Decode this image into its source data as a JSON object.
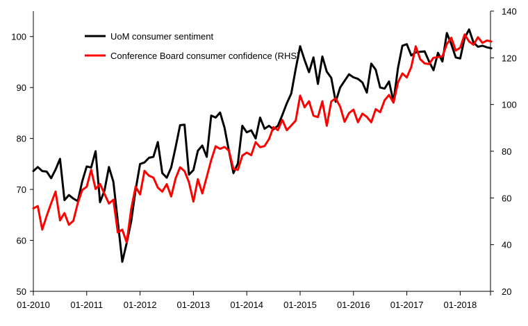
{
  "chart_data": {
    "type": "line",
    "title": "",
    "xlabel": "",
    "ylabel_left": "",
    "ylabel_right": "",
    "x_tick_labels": [
      "01-2010",
      "01-2011",
      "01-2012",
      "01-2013",
      "01-2014",
      "01-2015",
      "01-2016",
      "01-2017",
      "01-2018"
    ],
    "x_range_months": [
      0,
      103
    ],
    "y_left": {
      "range": [
        50,
        105
      ],
      "ticks": [
        50,
        60,
        70,
        80,
        90,
        100
      ]
    },
    "y_right": {
      "range": [
        20,
        140
      ],
      "ticks": [
        20,
        40,
        60,
        80,
        100,
        120,
        140
      ]
    },
    "series": [
      {
        "name": "UoM consumer sentiment",
        "axis": "left",
        "color": "#000000",
        "values": [
          73.6,
          74.4,
          73.6,
          73.5,
          72.2,
          73.9,
          76.0,
          67.9,
          68.9,
          68.2,
          67.7,
          71.6,
          74.5,
          74.3,
          77.5,
          67.5,
          69.8,
          74.4,
          71.5,
          63.7,
          55.8,
          59.5,
          63.7,
          69.9,
          75.0,
          75.3,
          76.2,
          76.4,
          79.3,
          73.2,
          72.3,
          74.3,
          78.3,
          82.6,
          82.7,
          72.9,
          73.8,
          77.6,
          78.6,
          76.4,
          84.5,
          84.1,
          85.1,
          82.1,
          77.5,
          73.2,
          75.1,
          82.5,
          81.2,
          81.6,
          80.0,
          84.1,
          81.9,
          82.5,
          81.8,
          82.5,
          84.6,
          86.9,
          88.8,
          93.6,
          98.1,
          95.4,
          93.0,
          95.9,
          90.7,
          96.1,
          93.1,
          91.9,
          87.2,
          90.0,
          91.3,
          92.6,
          92.0,
          91.7,
          91.0,
          89.0,
          94.7,
          93.5,
          90.0,
          89.8,
          91.2,
          87.2,
          93.8,
          98.2,
          98.5,
          96.3,
          96.9,
          97.0,
          97.1,
          95.1,
          93.4,
          96.8,
          95.1,
          100.7,
          98.5,
          95.9,
          95.7,
          99.7,
          101.4,
          98.8,
          98.0,
          98.2,
          97.9,
          97.7
        ]
      },
      {
        "name": "Conference Board consumer confidence (RHS)",
        "axis": "right",
        "color": "#ff0000",
        "values": [
          55.5,
          56.5,
          46.4,
          52.3,
          57.7,
          62.7,
          50.4,
          53.5,
          48.5,
          50.2,
          57.8,
          63.4,
          64.8,
          72.0,
          63.8,
          66.0,
          61.7,
          57.6,
          59.2,
          45.2,
          46.4,
          40.9,
          55.2,
          64.8,
          61.5,
          71.6,
          69.5,
          68.7,
          64.4,
          62.7,
          65.9,
          60.6,
          68.4,
          73.1,
          71.5,
          66.7,
          58.4,
          68.0,
          61.9,
          69.0,
          76.2,
          82.1,
          81.0,
          81.8,
          80.2,
          72.4,
          72.0,
          78.1,
          79.4,
          78.3,
          83.9,
          81.7,
          82.2,
          85.2,
          90.3,
          89.0,
          93.4,
          89.0,
          91.0,
          93.1,
          103.8,
          98.8,
          101.4,
          95.2,
          94.6,
          101.4,
          90.9,
          101.3,
          102.6,
          99.1,
          92.6,
          96.3,
          97.8,
          92.4,
          96.1,
          94.7,
          92.4,
          98.0,
          96.7,
          101.8,
          104.1,
          100.8,
          109.4,
          113.3,
          111.6,
          116.1,
          124.9,
          119.4,
          117.6,
          117.3,
          120.0,
          120.3,
          120.6,
          125.9,
          128.6,
          123.1,
          124.3,
          130.0,
          127.0,
          125.6,
          128.8,
          126.4,
          127.4,
          127.0
        ]
      }
    ],
    "legend": {
      "position": "top-center",
      "entries": [
        "UoM consumer sentiment",
        "Conference Board consumer confidence (RHS)"
      ]
    }
  }
}
